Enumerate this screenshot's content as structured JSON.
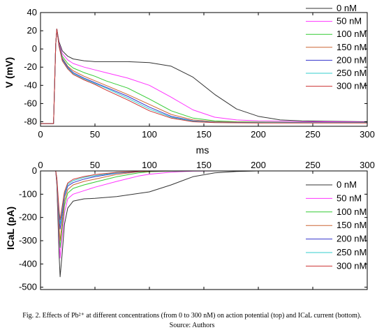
{
  "caption": {
    "line1": "Fig. 2. Effects of Pb²⁺ at different concentrations (from 0 to 300 nM) on action potential (top) and ICaL current (bottom).",
    "line2": "Source: Authors"
  },
  "chart_data": [
    {
      "type": "line",
      "title": "",
      "xlabel": "ms",
      "ylabel": "V (mV)",
      "xlim": [
        0,
        300
      ],
      "ylim": [
        -85,
        40
      ],
      "xticks": [
        0,
        50,
        100,
        150,
        200,
        250,
        300
      ],
      "yticks": [
        40,
        20,
        0,
        -20,
        -40,
        -60,
        -80
      ],
      "grid": false,
      "legend": "top-right",
      "series": [
        {
          "name": "0 nM",
          "color": "#333333",
          "x": [
            0,
            10,
            12,
            14,
            15,
            17,
            20,
            25,
            30,
            40,
            50,
            60,
            80,
            100,
            120,
            140,
            160,
            180,
            200,
            220,
            240,
            260,
            300
          ],
          "y": [
            -82,
            -82,
            -82,
            5,
            22,
            8,
            -2,
            -8,
            -11,
            -13,
            -14,
            -14,
            -14,
            -15,
            -19,
            -31,
            -50,
            -66,
            -74,
            -78,
            -79,
            -79.5,
            -80
          ]
        },
        {
          "name": "50 nM",
          "color": "#ff33ff",
          "x": [
            0,
            10,
            12,
            14,
            15,
            17,
            20,
            25,
            30,
            40,
            50,
            60,
            80,
            100,
            120,
            140,
            160,
            180,
            200,
            220,
            240,
            260,
            300
          ],
          "y": [
            -82,
            -82,
            -82,
            5,
            22,
            6,
            -5,
            -12,
            -16,
            -20,
            -23,
            -26,
            -32,
            -40,
            -53,
            -67,
            -75,
            -78,
            -79,
            -79.5,
            -80,
            -80,
            -80.5
          ]
        },
        {
          "name": "100 nM",
          "color": "#33cc33",
          "x": [
            0,
            10,
            12,
            14,
            15,
            17,
            20,
            25,
            30,
            40,
            50,
            60,
            80,
            100,
            120,
            140,
            160,
            180,
            200,
            220,
            240,
            260,
            300
          ],
          "y": [
            -82,
            -82,
            -82,
            5,
            22,
            5,
            -8,
            -16,
            -21,
            -26,
            -30,
            -35,
            -43,
            -55,
            -68,
            -76,
            -79,
            -80,
            -80.3,
            -80.5,
            -80.7,
            -80.8,
            -81
          ]
        },
        {
          "name": "150 nM",
          "color": "#cc6633",
          "x": [
            0,
            10,
            12,
            14,
            15,
            17,
            20,
            25,
            30,
            40,
            50,
            60,
            80,
            100,
            120,
            140,
            160,
            180,
            200,
            220,
            240,
            260,
            300
          ],
          "y": [
            -82,
            -82,
            -82,
            5,
            22,
            4,
            -10,
            -19,
            -24,
            -30,
            -35,
            -40,
            -50,
            -61,
            -72,
            -78,
            -80,
            -80.5,
            -80.7,
            -80.8,
            -80.9,
            -81,
            -81
          ]
        },
        {
          "name": "200 nM",
          "color": "#3333cc",
          "x": [
            0,
            10,
            12,
            14,
            15,
            17,
            20,
            25,
            30,
            40,
            50,
            60,
            80,
            100,
            120,
            140,
            160,
            180,
            200,
            220,
            240,
            260,
            300
          ],
          "y": [
            -82,
            -82,
            -82,
            5,
            22,
            4,
            -11,
            -20,
            -26,
            -32,
            -37,
            -42,
            -52,
            -64,
            -74,
            -79,
            -80.5,
            -80.8,
            -81,
            -81,
            -81,
            -81,
            -81
          ]
        },
        {
          "name": "250 nM",
          "color": "#33cccc",
          "x": [
            0,
            10,
            12,
            14,
            15,
            17,
            20,
            25,
            30,
            40,
            50,
            60,
            80,
            100,
            120,
            140,
            160,
            180,
            200,
            220,
            240,
            260,
            300
          ],
          "y": [
            -82,
            -82,
            -82,
            5,
            22,
            3,
            -12,
            -21,
            -27,
            -33,
            -38,
            -43,
            -54,
            -66,
            -75,
            -79.5,
            -80.7,
            -81,
            -81,
            -81,
            -81,
            -81,
            -81
          ]
        },
        {
          "name": "300 nM",
          "color": "#cc3333",
          "x": [
            0,
            10,
            12,
            14,
            15,
            17,
            20,
            25,
            30,
            40,
            50,
            60,
            80,
            100,
            120,
            140,
            160,
            180,
            200,
            220,
            240,
            260,
            300
          ],
          "y": [
            -82,
            -82,
            -82,
            5,
            22,
            3,
            -13,
            -22,
            -28,
            -34,
            -39,
            -45,
            -56,
            -68,
            -76,
            -80,
            -81,
            -81.2,
            -81.3,
            -81.3,
            -81.3,
            -81.3,
            -81.3
          ]
        }
      ]
    },
    {
      "type": "line",
      "title": "",
      "xlabel": "",
      "ylabel": "ICaL (pA)",
      "xlim": [
        0,
        300
      ],
      "ylim": [
        -510,
        0
      ],
      "xticks": [
        0,
        50,
        100,
        150,
        200,
        250,
        300
      ],
      "yticks": [
        0,
        -100,
        -200,
        -300,
        -400,
        -500
      ],
      "grid": false,
      "legend": "right",
      "series": [
        {
          "name": "0 nM",
          "color": "#333333",
          "x": [
            14,
            15,
            17,
            18,
            20,
            22,
            25,
            30,
            40,
            50,
            70,
            100,
            120,
            140,
            160,
            180,
            200
          ],
          "y": [
            0,
            -60,
            -350,
            -455,
            -350,
            -230,
            -160,
            -130,
            -120,
            -118,
            -110,
            -90,
            -60,
            -25,
            -8,
            -2,
            0
          ]
        },
        {
          "name": "50 nM",
          "color": "#ff33ff",
          "x": [
            14,
            15,
            17,
            18,
            20,
            22,
            25,
            30,
            40,
            50,
            70,
            90,
            100,
            120,
            140,
            160
          ],
          "y": [
            0,
            -50,
            -280,
            -375,
            -280,
            -180,
            -120,
            -100,
            -85,
            -70,
            -45,
            -22,
            -14,
            -5,
            -1,
            0
          ]
        },
        {
          "name": "100 nM",
          "color": "#33cc33",
          "x": [
            14,
            15,
            17,
            18,
            20,
            22,
            25,
            30,
            40,
            50,
            70,
            90,
            100,
            120,
            140
          ],
          "y": [
            0,
            -45,
            -250,
            -330,
            -240,
            -150,
            -95,
            -75,
            -60,
            -48,
            -25,
            -8,
            -4,
            -1,
            0
          ]
        },
        {
          "name": "150 nM",
          "color": "#cc6633",
          "x": [
            14,
            15,
            17,
            18,
            20,
            22,
            25,
            30,
            40,
            50,
            70,
            90,
            100,
            120
          ],
          "y": [
            0,
            -40,
            -230,
            -300,
            -215,
            -130,
            -80,
            -60,
            -45,
            -35,
            -15,
            -4,
            -2,
            0
          ]
        },
        {
          "name": "200 nM",
          "color": "#3333cc",
          "x": [
            14,
            15,
            17,
            18,
            20,
            22,
            25,
            30,
            40,
            50,
            70,
            90,
            100,
            120
          ],
          "y": [
            0,
            -35,
            -200,
            -250,
            -185,
            -110,
            -65,
            -50,
            -35,
            -25,
            -10,
            -3,
            -1,
            0
          ]
        },
        {
          "name": "250 nM",
          "color": "#33cccc",
          "x": [
            14,
            15,
            17,
            18,
            20,
            22,
            25,
            30,
            40,
            50,
            70,
            90,
            100,
            120
          ],
          "y": [
            0,
            -32,
            -180,
            -228,
            -165,
            -100,
            -58,
            -42,
            -28,
            -20,
            -8,
            -2,
            -1,
            0
          ]
        },
        {
          "name": "300 nM",
          "color": "#cc3333",
          "x": [
            14,
            15,
            17,
            18,
            20,
            22,
            25,
            30,
            40,
            50,
            70,
            90,
            100,
            120
          ],
          "y": [
            0,
            -30,
            -165,
            -210,
            -150,
            -90,
            -52,
            -36,
            -24,
            -16,
            -6,
            -2,
            -1,
            0
          ]
        }
      ]
    }
  ]
}
